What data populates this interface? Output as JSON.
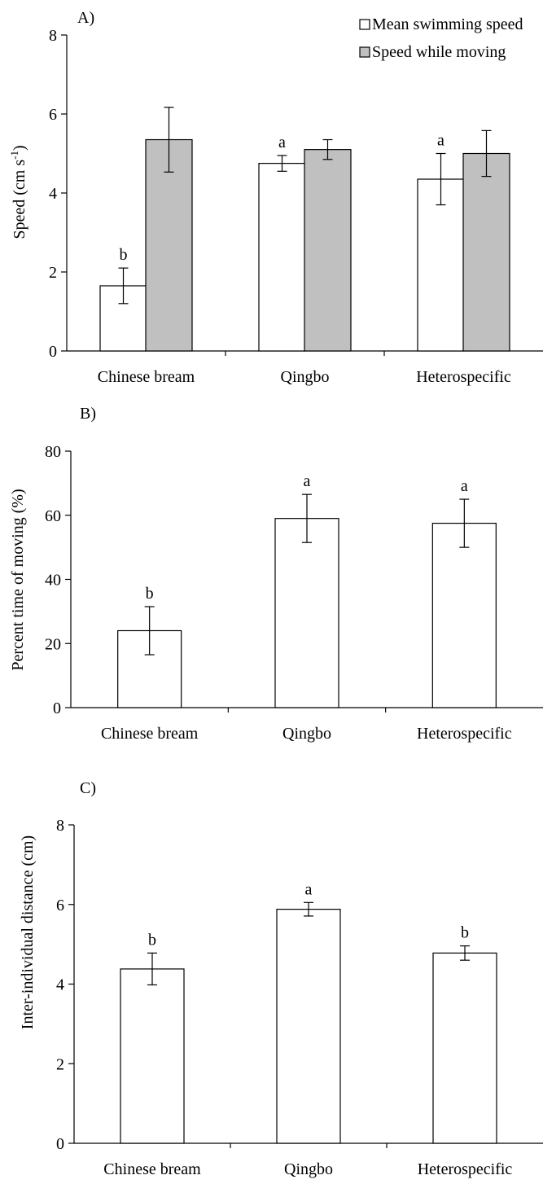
{
  "chart_data": [
    {
      "panel_label": "A)",
      "type": "bar",
      "categories": [
        "Chinese bream",
        "Qingbo",
        "Heterospecific"
      ],
      "ylabel": "Speed (cm s",
      "ylabel_sup": "-1",
      "ylabel_end": ")",
      "ylim": [
        0,
        8
      ],
      "yticks": [
        "0",
        "2",
        "4",
        "6",
        "8"
      ],
      "legend": {
        "placement": "top-right"
      },
      "series": [
        {
          "name": "Mean swimming speed",
          "color": "#ffffff",
          "values": [
            1.65,
            4.75,
            4.35
          ],
          "errors": [
            0.45,
            0.2,
            0.65
          ],
          "letters": [
            "b",
            "a",
            "a"
          ]
        },
        {
          "name": "Speed while moving",
          "color": "#c0c0c0",
          "values": [
            5.35,
            5.1,
            5.0
          ],
          "errors": [
            0.82,
            0.25,
            0.58
          ],
          "letters": [
            "",
            "",
            ""
          ]
        }
      ]
    },
    {
      "panel_label": "B)",
      "type": "bar",
      "categories": [
        "Chinese bream",
        "Qingbo",
        "Heterospecific"
      ],
      "ylabel": "Percent time of moving  (%)",
      "ylim": [
        0,
        80
      ],
      "yticks": [
        "0",
        "20",
        "40",
        "60",
        "80"
      ],
      "series": [
        {
          "color": "#ffffff",
          "values": [
            24,
            59,
            57.5
          ],
          "errors": [
            7.5,
            7.5,
            7.5
          ],
          "letters": [
            "b",
            "a",
            "a"
          ]
        }
      ]
    },
    {
      "panel_label": "C)",
      "type": "bar",
      "categories": [
        "Chinese bream",
        "Qingbo",
        "Heterospecific"
      ],
      "ylabel": "Inter-individual distance (cm)",
      "ylim": [
        0,
        8
      ],
      "yticks": [
        "0",
        "2",
        "4",
        "6",
        "8"
      ],
      "series": [
        {
          "color": "#ffffff",
          "values": [
            4.38,
            5.88,
            4.78
          ],
          "errors": [
            0.4,
            0.17,
            0.18
          ],
          "letters": [
            "b",
            "a",
            "b"
          ]
        }
      ]
    }
  ]
}
